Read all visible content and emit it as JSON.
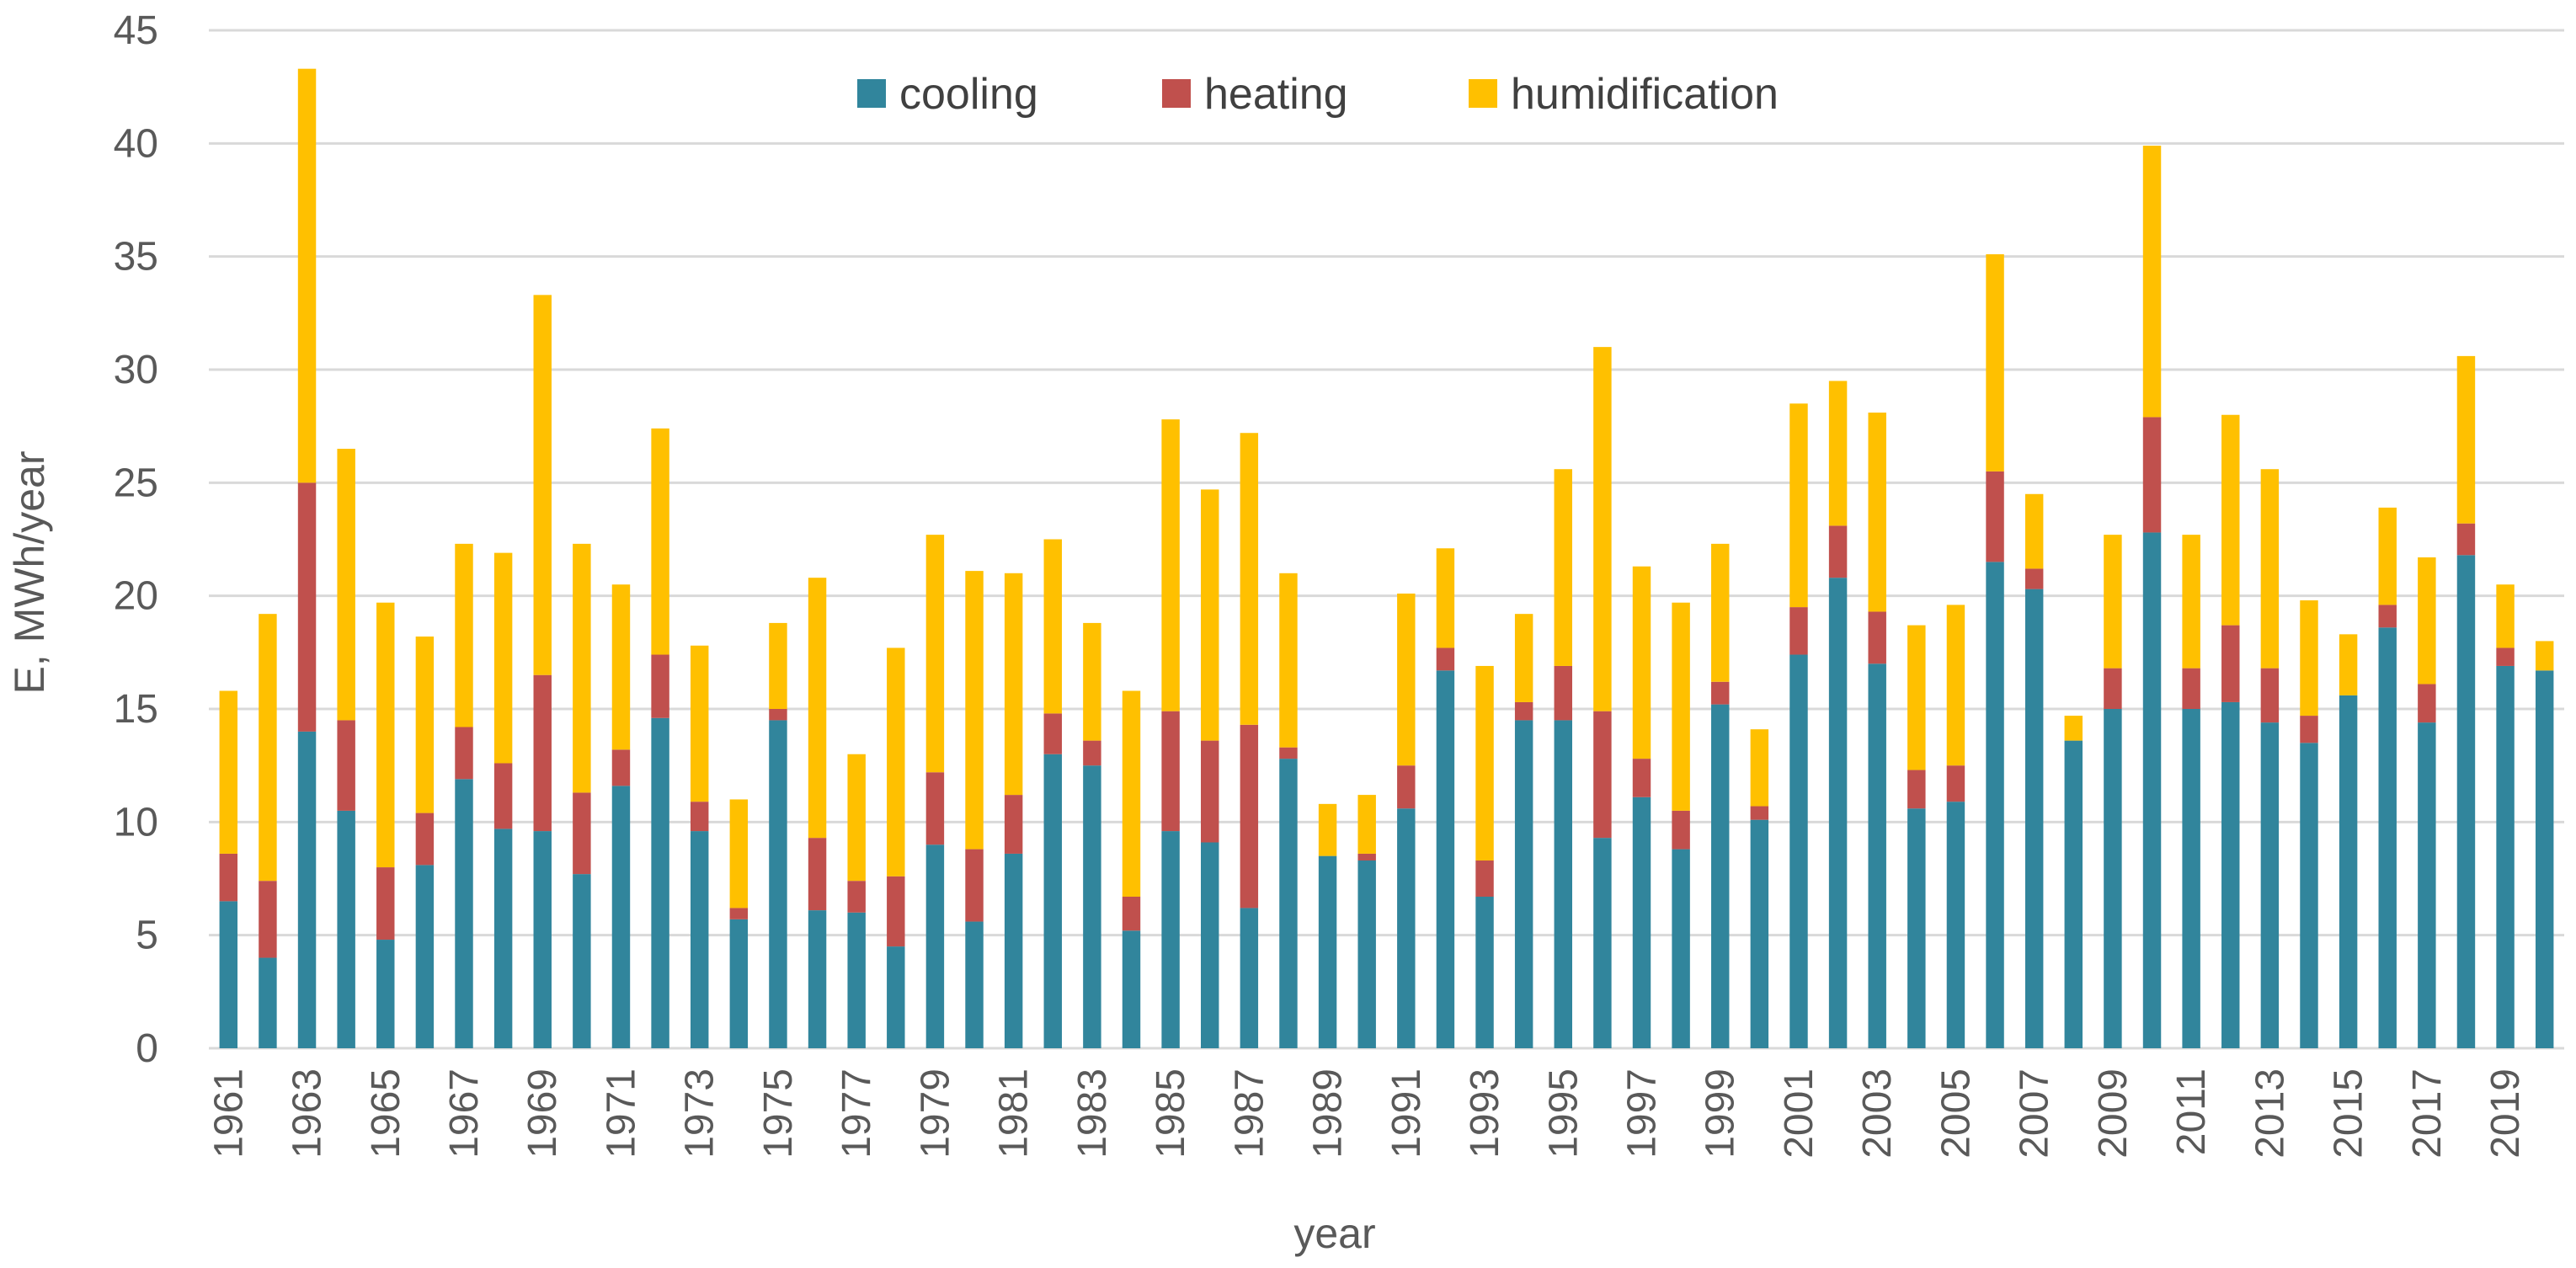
{
  "chart_data": {
    "type": "bar",
    "stacked": true,
    "title": "",
    "xlabel": "year",
    "ylabel": "E, MWh/year",
    "ylim": [
      0,
      45
    ],
    "yticks": [
      0,
      5,
      10,
      15,
      20,
      25,
      30,
      35,
      40,
      45
    ],
    "grid": true,
    "legend_position": "top-center",
    "categories": [
      "1961",
      "1962",
      "1963",
      "1964",
      "1965",
      "1966",
      "1967",
      "1968",
      "1969",
      "1970",
      "1971",
      "1972",
      "1973",
      "1974",
      "1975",
      "1976",
      "1977",
      "1978",
      "1979",
      "1980",
      "1981",
      "1982",
      "1983",
      "1984",
      "1985",
      "1986",
      "1987",
      "1988",
      "1989",
      "1990",
      "1991",
      "1992",
      "1993",
      "1994",
      "1995",
      "1996",
      "1997",
      "1998",
      "1999",
      "2000",
      "2001",
      "2002",
      "2003",
      "2004",
      "2005",
      "2006",
      "2007",
      "2008",
      "2009",
      "2010",
      "2011",
      "2012",
      "2013",
      "2014",
      "2015",
      "2016",
      "2017",
      "2018",
      "2019",
      "2020"
    ],
    "xtick_labels": [
      "1961",
      "1963",
      "1965",
      "1967",
      "1969",
      "1971",
      "1973",
      "1975",
      "1977",
      "1979",
      "1981",
      "1983",
      "1985",
      "1987",
      "1989",
      "1991",
      "1993",
      "1995",
      "1997",
      "1999",
      "2001",
      "2003",
      "2005",
      "2007",
      "2009",
      "2011",
      "2013",
      "2015",
      "2017",
      "2019"
    ],
    "series": [
      {
        "name": "cooling",
        "color": "#31859c",
        "values": [
          6.5,
          4.0,
          14.0,
          10.5,
          4.8,
          8.1,
          11.9,
          9.7,
          9.6,
          7.7,
          11.6,
          14.6,
          9.6,
          5.7,
          14.5,
          6.1,
          6.0,
          4.5,
          9.0,
          5.6,
          8.6,
          13.0,
          12.5,
          5.2,
          9.6,
          9.1,
          6.2,
          12.8,
          8.5,
          8.3,
          10.6,
          16.7,
          6.7,
          14.5,
          14.5,
          9.3,
          11.1,
          8.8,
          15.2,
          10.1,
          17.4,
          20.8,
          17.0,
          10.6,
          10.9,
          21.5,
          20.3,
          13.6,
          15.0,
          22.8,
          15.0,
          15.3,
          14.4,
          13.5,
          15.6,
          18.6,
          14.4,
          21.8,
          16.9,
          16.7
        ]
      },
      {
        "name": "heating",
        "color": "#c0504d",
        "values": [
          2.1,
          3.4,
          11.0,
          4.0,
          3.2,
          2.3,
          2.3,
          2.9,
          6.9,
          3.6,
          1.6,
          2.8,
          1.3,
          0.5,
          0.5,
          3.2,
          1.4,
          3.1,
          3.2,
          3.2,
          2.6,
          1.8,
          1.1,
          1.5,
          5.3,
          4.5,
          8.1,
          0.5,
          0.0,
          0.3,
          1.9,
          1.0,
          1.6,
          0.8,
          2.4,
          5.6,
          1.7,
          1.7,
          1.0,
          0.6,
          2.1,
          2.3,
          2.3,
          1.7,
          1.6,
          4.0,
          0.9,
          0.0,
          1.8,
          5.1,
          1.8,
          3.4,
          2.4,
          1.2,
          0.0,
          1.0,
          1.7,
          1.4,
          0.8,
          0.0
        ]
      },
      {
        "name": "humidification",
        "color": "#ffc000",
        "values": [
          7.2,
          11.8,
          18.3,
          12.0,
          11.7,
          7.8,
          8.1,
          9.3,
          16.8,
          11.0,
          7.3,
          10.0,
          6.9,
          4.8,
          3.8,
          11.5,
          5.6,
          10.1,
          10.5,
          12.3,
          9.8,
          7.7,
          5.2,
          9.1,
          12.9,
          11.1,
          12.9,
          7.7,
          2.3,
          2.6,
          7.6,
          4.4,
          8.6,
          3.9,
          8.7,
          16.1,
          8.5,
          9.2,
          6.1,
          3.4,
          9.0,
          6.4,
          8.8,
          6.4,
          7.1,
          9.6,
          3.3,
          1.1,
          5.9,
          12.0,
          5.9,
          9.3,
          8.8,
          5.1,
          2.7,
          4.3,
          5.6,
          7.4,
          2.8,
          1.3
        ]
      }
    ]
  }
}
